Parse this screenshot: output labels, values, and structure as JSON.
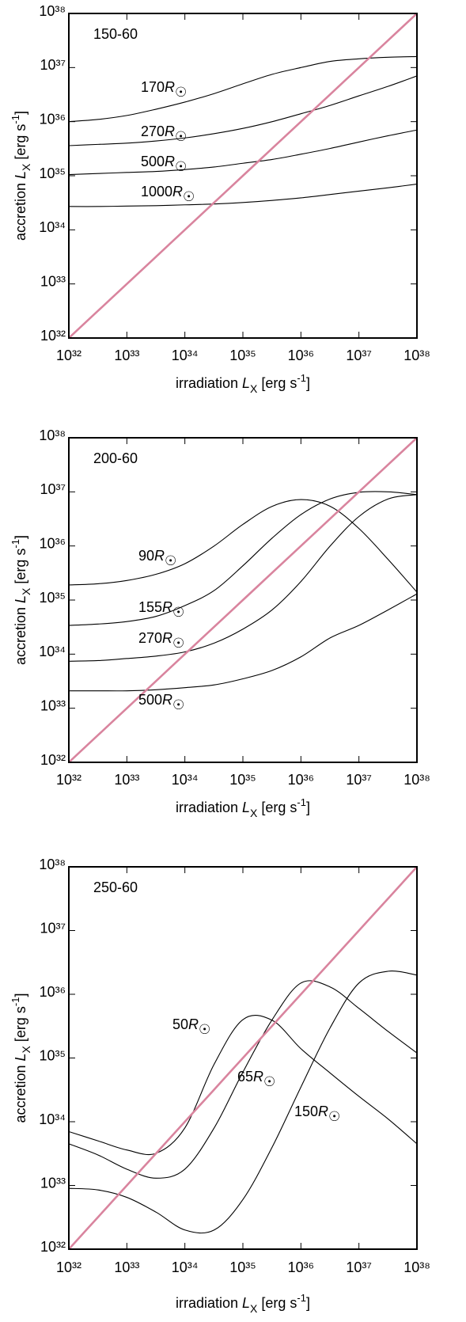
{
  "chart_data": [
    {
      "type": "line",
      "title": "150-60",
      "xscale": "log",
      "yscale": "log",
      "xlabel": [
        "irradiation ",
        "L",
        "X",
        " [erg s",
        "-1",
        "]"
      ],
      "ylabel": [
        "accretion ",
        "L",
        "X",
        " [erg s",
        "-1",
        "]"
      ],
      "xlim": [
        1e+32,
        1e+38
      ],
      "ylim": [
        1e+32,
        1e+38
      ],
      "xticks": [
        {
          "value": 1e+32,
          "label": "10³²"
        },
        {
          "value": 1e+33,
          "label": "10³³"
        },
        {
          "value": 1e+34,
          "label": "10³⁴"
        },
        {
          "value": 1e+35,
          "label": "10³⁵"
        },
        {
          "value": 1e+36,
          "label": "10³⁶"
        },
        {
          "value": 1e+37,
          "label": "10³⁷"
        },
        {
          "value": 1e+38,
          "label": "10³⁸"
        }
      ],
      "yticks": [
        {
          "value": 1e+32,
          "label": "10³²"
        },
        {
          "value": 1e+33,
          "label": "10³³"
        },
        {
          "value": 1e+34,
          "label": "10³⁴"
        },
        {
          "value": 1e+35,
          "label": "10³⁵"
        },
        {
          "value": 1e+36,
          "label": "10³⁶"
        },
        {
          "value": 1e+37,
          "label": "10³⁷"
        },
        {
          "value": 1e+38,
          "label": "10³⁸"
        }
      ],
      "x": [
        1e+32,
        3.2e+32,
        1e+33,
        3.2e+33,
        1e+34,
        3.2e+34,
        1e+35,
        3.2e+35,
        1e+36,
        3.2e+36,
        1e+37,
        3.2e+37,
        1e+38
      ],
      "series": [
        {
          "color": "#d9849e",
          "values": [
            1e+32,
            3.2e+32,
            1e+33,
            3.2e+33,
            1e+34,
            3.2e+34,
            1e+35,
            3.2e+35,
            1e+36,
            3.2e+36,
            1e+37,
            3.2e+37,
            1e+38
          ]
        },
        {
          "name": "170R☉",
          "color": "#000000",
          "values": [
            1e+36,
            1.1e+36,
            1.3e+36,
            1.7e+36,
            2.3e+36,
            3.3e+36,
            5e+36,
            7.5e+36,
            1e+37,
            1.3e+37,
            1.45e+37,
            1.55e+37,
            1.6e+37
          ]
        },
        {
          "name": "270R☉",
          "color": "#000000",
          "values": [
            3.6e+35,
            3.8e+35,
            4e+35,
            4.4e+35,
            5e+35,
            6e+35,
            7.5e+35,
            1e+36,
            1.4e+36,
            2e+36,
            3e+36,
            4.5e+36,
            7e+36
          ]
        },
        {
          "name": "500R☉",
          "color": "#000000",
          "values": [
            1.05e+35,
            1.1e+35,
            1.15e+35,
            1.2e+35,
            1.3e+35,
            1.45e+35,
            1.7e+35,
            2e+35,
            2.5e+35,
            3.2e+35,
            4.2e+35,
            5.5e+35,
            7e+35
          ]
        },
        {
          "name": "1000R☉",
          "color": "#000000",
          "values": [
            2.7e+34,
            2.7e+34,
            2.75e+34,
            2.8e+34,
            2.9e+34,
            3e+34,
            3.2e+34,
            3.5e+34,
            3.9e+34,
            4.5e+34,
            5.2e+34,
            6e+34,
            7e+34
          ]
        }
      ]
    },
    {
      "type": "line",
      "title": "200-60",
      "xscale": "log",
      "yscale": "log",
      "xlabel": [
        "irradiation ",
        "L",
        "X",
        " [erg s",
        "-1",
        "]"
      ],
      "ylabel": [
        "accretion ",
        "L",
        "X",
        " [erg s",
        "-1",
        "]"
      ],
      "xlim": [
        1e+32,
        1e+38
      ],
      "ylim": [
        1e+32,
        1e+38
      ],
      "xticks": [
        {
          "value": 1e+32,
          "label": "10³²"
        },
        {
          "value": 1e+33,
          "label": "10³³"
        },
        {
          "value": 1e+34,
          "label": "10³⁴"
        },
        {
          "value": 1e+35,
          "label": "10³⁵"
        },
        {
          "value": 1e+36,
          "label": "10³⁶"
        },
        {
          "value": 1e+37,
          "label": "10³⁷"
        },
        {
          "value": 1e+38,
          "label": "10³⁸"
        }
      ],
      "yticks": [
        {
          "value": 1e+32,
          "label": "10³²"
        },
        {
          "value": 1e+33,
          "label": "10³³"
        },
        {
          "value": 1e+34,
          "label": "10³⁴"
        },
        {
          "value": 1e+35,
          "label": "10³⁵"
        },
        {
          "value": 1e+36,
          "label": "10³⁶"
        },
        {
          "value": 1e+37,
          "label": "10³⁷"
        },
        {
          "value": 1e+38,
          "label": "10³⁸"
        }
      ],
      "x": [
        1e+32,
        3.2e+32,
        1e+33,
        3.2e+33,
        1e+34,
        3.2e+34,
        1e+35,
        3.2e+35,
        1e+36,
        3.2e+36,
        1e+37,
        3.2e+37,
        1e+38
      ],
      "series": [
        {
          "color": "#d9849e",
          "values": [
            1e+32,
            3.2e+32,
            1e+33,
            3.2e+33,
            1e+34,
            3.2e+34,
            1e+35,
            3.2e+35,
            1e+36,
            3.2e+36,
            1e+37,
            3.2e+37,
            1e+38
          ]
        },
        {
          "name": "90R☉",
          "color": "#000000",
          "values": [
            1.9e+35,
            2e+35,
            2.3e+35,
            3e+35,
            4.7e+35,
            1e+36,
            2.5e+36,
            5.4e+36,
            7.2e+36,
            5.4e+36,
            2.1e+36,
            5.6e+35,
            1.4e+35
          ]
        },
        {
          "name": "155R☉",
          "color": "#000000",
          "values": [
            3.4e+34,
            3.6e+34,
            4e+34,
            5e+34,
            7.9e+34,
            1.5e+35,
            4.3e+35,
            1.4e+36,
            3.8e+36,
            7.4e+36,
            9.8e+36,
            1e+37,
            8.9e+36
          ]
        },
        {
          "name": "270R☉",
          "color": "#000000",
          "values": [
            7.4e+33,
            7.6e+33,
            8.3e+33,
            9.2e+33,
            1.1e+34,
            1.6e+34,
            2.9e+34,
            6.6e+34,
            2.2e+35,
            1e+36,
            3.5e+36,
            7.4e+36,
            8.9e+36
          ]
        },
        {
          "name": "500R☉",
          "color": "#000000",
          "values": [
            2.1e+33,
            2.1e+33,
            2.1e+33,
            2.2e+33,
            2.4e+33,
            2.7e+33,
            3.5e+33,
            5e+33,
            8.9e+33,
            2e+34,
            3.4e+34,
            6.6e+34,
            1.3e+35
          ]
        }
      ]
    },
    {
      "type": "line",
      "title": "250-60",
      "xscale": "log",
      "yscale": "log",
      "xlabel": [
        "irradiation ",
        "L",
        "X",
        " [erg s",
        "-1",
        "]"
      ],
      "ylabel": [
        "accretion ",
        "L",
        "X",
        " [erg s",
        "-1",
        "]"
      ],
      "xlim": [
        1e+32,
        1e+38
      ],
      "ylim": [
        1e+32,
        1e+38
      ],
      "xticks": [
        {
          "value": 1e+32,
          "label": "10³²"
        },
        {
          "value": 1e+33,
          "label": "10³³"
        },
        {
          "value": 1e+34,
          "label": "10³⁴"
        },
        {
          "value": 1e+35,
          "label": "10³⁵"
        },
        {
          "value": 1e+36,
          "label": "10³⁶"
        },
        {
          "value": 1e+37,
          "label": "10³⁷"
        },
        {
          "value": 1e+38,
          "label": "10³⁸"
        }
      ],
      "yticks": [
        {
          "value": 1e+32,
          "label": "10³²"
        },
        {
          "value": 1e+33,
          "label": "10³³"
        },
        {
          "value": 1e+34,
          "label": "10³⁴"
        },
        {
          "value": 1e+35,
          "label": "10³⁵"
        },
        {
          "value": 1e+36,
          "label": "10³⁶"
        },
        {
          "value": 1e+37,
          "label": "10³⁷"
        },
        {
          "value": 1e+38,
          "label": "10³⁸"
        }
      ],
      "x": [
        1e+32,
        3.2e+32,
        1e+33,
        3.2e+33,
        1e+34,
        3.2e+34,
        1e+35,
        3.2e+35,
        1e+36,
        3.2e+36,
        1e+37,
        3.2e+37,
        1e+38
      ],
      "series": [
        {
          "color": "#d9849e",
          "values": [
            1e+32,
            3.2e+32,
            1e+33,
            3.2e+33,
            1e+34,
            3.2e+34,
            1e+35,
            3.2e+35,
            1e+36,
            3.2e+36,
            1e+37,
            3.2e+37,
            1e+38
          ]
        },
        {
          "name": "50R☉",
          "color": "#000000",
          "values": [
            7e+33,
            5e+33,
            3.6e+33,
            3.2e+33,
            8e+33,
            8e+34,
            4e+35,
            3.9e+35,
            1.4e+35,
            5.8e+34,
            2.5e+34,
            1.1e+34,
            4.5e+33
          ]
        },
        {
          "name": "65R☉",
          "color": "#000000",
          "values": [
            4.5e+33,
            3e+33,
            1.8e+33,
            1.3e+33,
            1.8e+33,
            8e+33,
            6e+34,
            4e+35,
            1.5e+36,
            1.3e+36,
            6e+35,
            2.6e+35,
            1.2e+35
          ]
        },
        {
          "name": "150R☉",
          "color": "#000000",
          "values": [
            9e+32,
            8.5e+32,
            6.5e+32,
            3.8e+32,
            2e+32,
            2e+32,
            6e+32,
            4e+33,
            3.5e+34,
            3e+35,
            1.5e+36,
            2.3e+36,
            2e+36
          ]
        }
      ]
    }
  ]
}
